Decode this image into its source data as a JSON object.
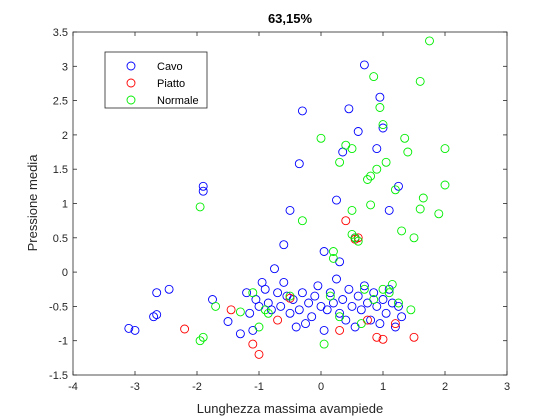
{
  "chart_data": {
    "type": "scatter",
    "title": "63,15%",
    "xlabel": "Lunghezza massima avampiede",
    "ylabel": "Pressione media",
    "xlim": [
      -4,
      3
    ],
    "ylim": [
      -1.5,
      3.5
    ],
    "xticks": [
      "-4",
      "-3",
      "-2",
      "-1",
      "0",
      "1",
      "2",
      "3"
    ],
    "yticks": [
      "-1.5",
      "-1",
      "-0.5",
      "0",
      "0.5",
      "1",
      "1.5",
      "2",
      "2.5",
      "3",
      "3.5"
    ],
    "grid": false,
    "legend": "top-left",
    "series": [
      {
        "name": "Cavo",
        "color": "#0000ff",
        "points": [
          [
            -3.1,
            -0.82
          ],
          [
            -3.0,
            -0.85
          ],
          [
            -2.7,
            -0.65
          ],
          [
            -2.65,
            -0.62
          ],
          [
            -2.65,
            -0.3
          ],
          [
            -2.45,
            -0.25
          ],
          [
            -1.9,
            1.25
          ],
          [
            -1.9,
            1.18
          ],
          [
            -1.75,
            -0.4
          ],
          [
            -1.5,
            -0.72
          ],
          [
            -1.3,
            -0.9
          ],
          [
            -1.2,
            -0.3
          ],
          [
            -1.15,
            -0.6
          ],
          [
            -1.1,
            -0.85
          ],
          [
            -1.05,
            -0.4
          ],
          [
            -1.0,
            -0.5
          ],
          [
            -0.95,
            -0.15
          ],
          [
            -0.9,
            -0.25
          ],
          [
            -0.85,
            -0.45
          ],
          [
            -0.8,
            -0.55
          ],
          [
            -0.75,
            0.05
          ],
          [
            -0.7,
            -0.3
          ],
          [
            -0.65,
            -0.5
          ],
          [
            -0.6,
            -0.15
          ],
          [
            -0.55,
            -0.35
          ],
          [
            -0.5,
            -0.6
          ],
          [
            -0.5,
            0.9
          ],
          [
            -0.45,
            -0.4
          ],
          [
            -0.4,
            -0.8
          ],
          [
            -0.35,
            -0.55
          ],
          [
            -0.3,
            -0.3
          ],
          [
            -0.25,
            -0.75
          ],
          [
            -0.2,
            -0.45
          ],
          [
            -0.15,
            -0.65
          ],
          [
            -0.1,
            -0.35
          ],
          [
            -0.05,
            -0.2
          ],
          [
            0.0,
            -0.5
          ],
          [
            0.05,
            -0.85
          ],
          [
            0.1,
            -0.55
          ],
          [
            0.15,
            -0.3
          ],
          [
            0.2,
            -0.45
          ],
          [
            0.25,
            -0.1
          ],
          [
            0.3,
            -0.6
          ],
          [
            0.35,
            -0.4
          ],
          [
            0.4,
            -0.7
          ],
          [
            0.45,
            -0.25
          ],
          [
            0.5,
            -0.5
          ],
          [
            0.55,
            -0.8
          ],
          [
            0.6,
            -0.35
          ],
          [
            0.65,
            -0.55
          ],
          [
            0.7,
            -0.2
          ],
          [
            0.75,
            -0.45
          ],
          [
            0.8,
            -0.7
          ],
          [
            0.85,
            -0.3
          ],
          [
            0.9,
            -0.5
          ],
          [
            0.95,
            -0.75
          ],
          [
            1.0,
            -0.4
          ],
          [
            1.05,
            -0.6
          ],
          [
            1.1,
            -0.25
          ],
          [
            1.15,
            -0.45
          ],
          [
            1.2,
            -0.8
          ],
          [
            1.25,
            -0.5
          ],
          [
            1.3,
            -0.65
          ],
          [
            -0.3,
            2.35
          ],
          [
            -0.35,
            1.58
          ],
          [
            0.35,
            1.75
          ],
          [
            0.45,
            2.38
          ],
          [
            0.6,
            2.05
          ],
          [
            0.7,
            3.02
          ],
          [
            0.9,
            1.8
          ],
          [
            0.95,
            2.55
          ],
          [
            1.0,
            2.1
          ],
          [
            1.25,
            1.25
          ],
          [
            1.1,
            0.9
          ],
          [
            0.25,
            1.05
          ],
          [
            0.55,
            0.5
          ],
          [
            0.05,
            0.3
          ],
          [
            -0.6,
            0.4
          ],
          [
            0.3,
            0.15
          ]
        ]
      },
      {
        "name": "Piatto",
        "color": "#ff0000",
        "points": [
          [
            -2.2,
            -0.83
          ],
          [
            -1.45,
            -0.55
          ],
          [
            -1.1,
            -1.05
          ],
          [
            -1.0,
            -1.2
          ],
          [
            -0.7,
            -0.7
          ],
          [
            -0.5,
            -0.38
          ],
          [
            0.4,
            0.75
          ],
          [
            0.55,
            0.48
          ],
          [
            0.6,
            0.5
          ],
          [
            0.9,
            -0.95
          ],
          [
            1.0,
            -0.98
          ],
          [
            1.2,
            -0.75
          ],
          [
            1.5,
            -0.95
          ],
          [
            0.3,
            -0.85
          ],
          [
            0.75,
            -0.7
          ]
        ]
      },
      {
        "name": "Normale",
        "color": "#00ee00",
        "points": [
          [
            -1.95,
            0.95
          ],
          [
            -1.95,
            -1.0
          ],
          [
            -1.9,
            -0.95
          ],
          [
            -1.7,
            -0.5
          ],
          [
            -1.3,
            -0.58
          ],
          [
            -1.0,
            -0.8
          ],
          [
            -0.9,
            -0.55
          ],
          [
            -0.5,
            -0.35
          ],
          [
            -0.3,
            0.75
          ],
          [
            0.0,
            1.95
          ],
          [
            0.05,
            -1.05
          ],
          [
            0.2,
            0.2
          ],
          [
            0.2,
            0.3
          ],
          [
            0.3,
            -0.65
          ],
          [
            0.3,
            1.6
          ],
          [
            0.4,
            1.85
          ],
          [
            0.5,
            1.8
          ],
          [
            0.5,
            0.9
          ],
          [
            0.5,
            0.55
          ],
          [
            0.55,
            0.5
          ],
          [
            0.6,
            0.45
          ],
          [
            0.65,
            -0.75
          ],
          [
            0.7,
            -0.25
          ],
          [
            0.75,
            1.35
          ],
          [
            0.8,
            1.4
          ],
          [
            0.8,
            0.98
          ],
          [
            0.85,
            2.85
          ],
          [
            0.9,
            1.5
          ],
          [
            0.95,
            2.4
          ],
          [
            1.0,
            2.15
          ],
          [
            1.0,
            -0.25
          ],
          [
            1.05,
            1.6
          ],
          [
            1.1,
            -0.3
          ],
          [
            1.15,
            -0.18
          ],
          [
            1.2,
            1.2
          ],
          [
            1.3,
            0.6
          ],
          [
            1.35,
            1.95
          ],
          [
            1.4,
            1.75
          ],
          [
            1.45,
            -0.55
          ],
          [
            1.5,
            0.5
          ],
          [
            1.6,
            2.78
          ],
          [
            1.6,
            0.92
          ],
          [
            1.65,
            1.08
          ],
          [
            1.75,
            3.37
          ],
          [
            1.9,
            0.85
          ],
          [
            2.0,
            1.8
          ],
          [
            2.0,
            1.27
          ],
          [
            0.85,
            -0.4
          ],
          [
            1.25,
            -0.45
          ],
          [
            -1.1,
            -0.3
          ],
          [
            -0.85,
            -0.6
          ],
          [
            0.15,
            -0.35
          ]
        ]
      }
    ]
  }
}
